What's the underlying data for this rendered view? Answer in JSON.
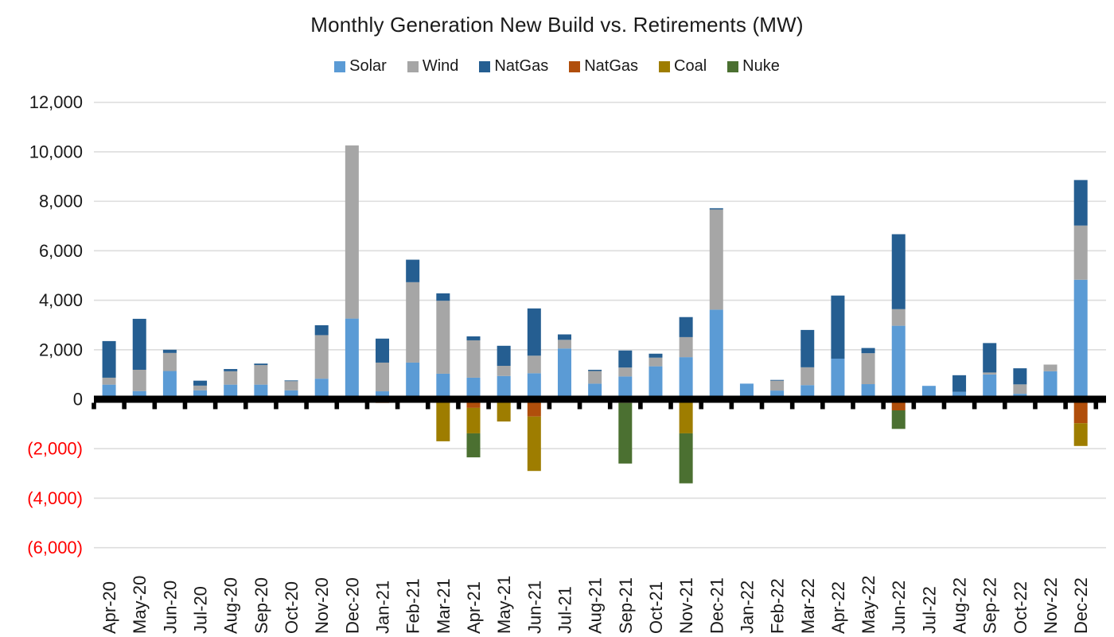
{
  "page": {
    "background": "#FFFFFF"
  },
  "chart_data": {
    "type": "bar",
    "stacked": true,
    "title": "Monthly Generation New Build vs. Retirements (MW)",
    "unit": "MW",
    "legend_position": "top",
    "gridlines": true,
    "axis_text_color": "#1A1A1A",
    "negative_tick_color": "#FF0000",
    "negative_tick_format": "parentheses",
    "ylim": [
      -6000,
      12000
    ],
    "ytick_step": 2000,
    "xlabel": "",
    "ylabel": "",
    "categories": [
      "Apr-20",
      "May-20",
      "Jun-20",
      "Jul-20",
      "Aug-20",
      "Sep-20",
      "Oct-20",
      "Nov-20",
      "Dec-20",
      "Jan-21",
      "Feb-21",
      "Mar-21",
      "Apr-21",
      "May-21",
      "Jun-21",
      "Jul-21",
      "Aug-21",
      "Sep-21",
      "Oct-21",
      "Nov-21",
      "Dec-21",
      "Jan-22",
      "Feb-22",
      "Mar-22",
      "Apr-22",
      "May-22",
      "Jun-22",
      "Jul-22",
      "Aug-22",
      "Sep-22",
      "Oct-22",
      "Nov-22",
      "Dec-22"
    ],
    "series": [
      {
        "name": "Solar",
        "color": "#5B9BD5",
        "values": [
          590,
          330,
          1140,
          360,
          590,
          590,
          360,
          830,
          3260,
          320,
          1480,
          1030,
          870,
          940,
          1050,
          2050,
          630,
          920,
          1330,
          1700,
          3620,
          630,
          350,
          570,
          1640,
          610,
          2970,
          540,
          300,
          1000,
          220,
          1130,
          4830
        ]
      },
      {
        "name": "Wind",
        "color": "#A6A6A6",
        "values": [
          280,
          860,
          730,
          190,
          540,
          790,
          370,
          1760,
          7000,
          1160,
          3250,
          2950,
          1510,
          410,
          710,
          350,
          510,
          360,
          350,
          810,
          4050,
          0,
          400,
          720,
          0,
          1250,
          670,
          0,
          0,
          80,
          380,
          270,
          2190
        ]
      },
      {
        "name": "NatGas",
        "color": "#255E91",
        "values": [
          1480,
          2060,
          130,
          200,
          90,
          60,
          30,
          400,
          0,
          970,
          910,
          300,
          160,
          810,
          1910,
          220,
          50,
          690,
          160,
          810,
          50,
          0,
          30,
          1510,
          2550,
          210,
          3030,
          0,
          670,
          1190,
          650,
          0,
          1840
        ]
      },
      {
        "name": "NatGas",
        "color": "#B04E0B",
        "values": [
          0,
          0,
          0,
          0,
          0,
          0,
          0,
          0,
          0,
          -150,
          0,
          0,
          -350,
          0,
          -700,
          0,
          0,
          -150,
          0,
          0,
          0,
          0,
          0,
          0,
          0,
          0,
          -450,
          0,
          0,
          -120,
          0,
          0,
          -970
        ]
      },
      {
        "name": "Coal",
        "color": "#9E7D00",
        "values": [
          0,
          0,
          0,
          0,
          0,
          0,
          0,
          0,
          0,
          0,
          0,
          -1700,
          -1030,
          -900,
          -2200,
          0,
          0,
          0,
          0,
          -1380,
          0,
          0,
          0,
          0,
          0,
          0,
          0,
          0,
          0,
          0,
          0,
          0,
          -920
        ]
      },
      {
        "name": "Nuke",
        "color": "#4B7031",
        "values": [
          0,
          0,
          0,
          0,
          0,
          0,
          0,
          0,
          0,
          0,
          0,
          0,
          -970,
          0,
          0,
          0,
          0,
          -2450,
          0,
          -2020,
          0,
          0,
          0,
          0,
          0,
          0,
          -750,
          0,
          0,
          0,
          0,
          0,
          0
        ]
      }
    ]
  }
}
